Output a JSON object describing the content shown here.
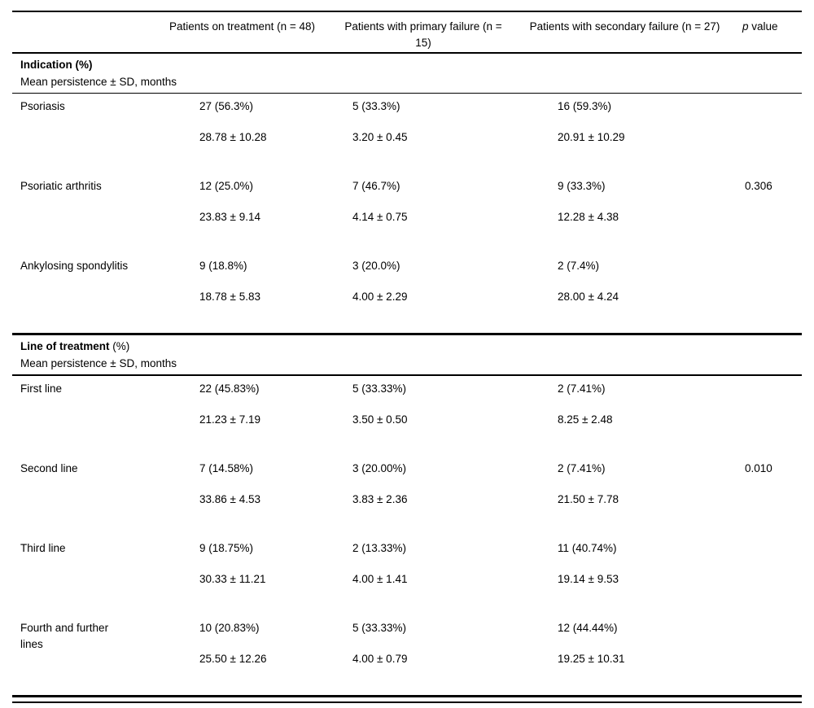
{
  "table": {
    "columns": [
      {
        "label": ""
      },
      {
        "label": "Patients on treatment (n = 48)"
      },
      {
        "label": "Patients with primary failure (n = 15)"
      },
      {
        "label": "Patients with secondary failure (n = 27)"
      },
      {
        "italic": "p",
        "rest": " value"
      }
    ],
    "sections": [
      {
        "title_bold": "Indication (%)",
        "title_rest": "",
        "subtitle": "Mean persistence ± SD, months",
        "rows": [
          {
            "label": "Psoriasis",
            "count": [
              "27 (56.3%)",
              "5 (33.3%)",
              "16 (59.3%)"
            ],
            "mean": [
              "28.78 ± 10.28",
              "3.20 ± 0.45",
              "20.91 ± 10.29"
            ],
            "p": ""
          },
          {
            "label": "Psoriatic arthritis",
            "count": [
              "12 (25.0%)",
              "7 (46.7%)",
              "9 (33.3%)"
            ],
            "mean": [
              "23.83 ± 9.14",
              "4.14 ± 0.75",
              "12.28 ± 4.38"
            ],
            "p": "0.306"
          },
          {
            "label": "Ankylosing spondylitis",
            "count": [
              "9 (18.8%)",
              "3 (20.0%)",
              "2 (7.4%)"
            ],
            "mean": [
              "18.78 ± 5.83",
              "4.00 ± 2.29",
              "28.00 ± 4.24"
            ],
            "p": ""
          }
        ]
      },
      {
        "title_bold": "Line of treatment",
        "title_rest": " (%)",
        "subtitle": "Mean persistence ± SD, months",
        "rows": [
          {
            "label": "First line",
            "count": [
              "22 (45.83%)",
              "5 (33.33%)",
              "2 (7.41%)"
            ],
            "mean": [
              "21.23 ± 7.19",
              "3.50 ± 0.50",
              "8.25 ± 2.48"
            ],
            "p": ""
          },
          {
            "label": "Second line",
            "count": [
              "7 (14.58%)",
              "3 (20.00%)",
              "2 (7.41%)"
            ],
            "mean": [
              "33.86 ± 4.53",
              "3.83 ± 2.36",
              "21.50 ± 7.78"
            ],
            "p": "0.010"
          },
          {
            "label": "Third line",
            "count": [
              "9 (18.75%)",
              "2 (13.33%)",
              "11 (40.74%)"
            ],
            "mean": [
              "30.33 ± 11.21",
              "4.00 ± 1.41",
              "19.14 ± 9.53"
            ],
            "p": ""
          },
          {
            "label": "Fourth and further lines",
            "count": [
              "10 (20.83%)",
              "5 (33.33%)",
              "12 (44.44%)"
            ],
            "mean": [
              "25.50 ± 12.26",
              "4.00 ± 0.79",
              "19.25 ± 10.31"
            ],
            "p": ""
          }
        ]
      }
    ]
  }
}
